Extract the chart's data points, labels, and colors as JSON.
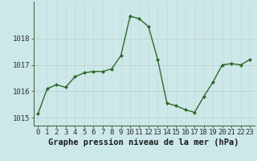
{
  "x": [
    0,
    1,
    2,
    3,
    4,
    5,
    6,
    7,
    8,
    9,
    10,
    11,
    12,
    13,
    14,
    15,
    16,
    17,
    18,
    19,
    20,
    21,
    22,
    23
  ],
  "y": [
    1015.15,
    1016.1,
    1016.25,
    1016.15,
    1016.55,
    1016.7,
    1016.75,
    1016.75,
    1016.85,
    1017.35,
    1018.85,
    1018.75,
    1018.45,
    1017.2,
    1015.55,
    1015.45,
    1015.3,
    1015.2,
    1015.8,
    1016.35,
    1017.0,
    1017.05,
    1017.0,
    1017.2
  ],
  "line_color": "#2d6a2d",
  "marker": "D",
  "marker_size": 2.0,
  "bg_color": "#cde8e8",
  "grid_color_v": "#c8d8d8",
  "grid_color_h": "#b8cccc",
  "axis_color": "#2d6a2d",
  "tick_color": "#2d2d2d",
  "ylabel_ticks": [
    1015,
    1016,
    1017,
    1018
  ],
  "ylim": [
    1014.7,
    1019.4
  ],
  "xlim": [
    -0.5,
    23.5
  ],
  "xlabel": "Graphe pression niveau de la mer (hPa)",
  "xlabel_fontsize": 7.5,
  "tick_fontsize": 6.5,
  "line_width": 1.0
}
